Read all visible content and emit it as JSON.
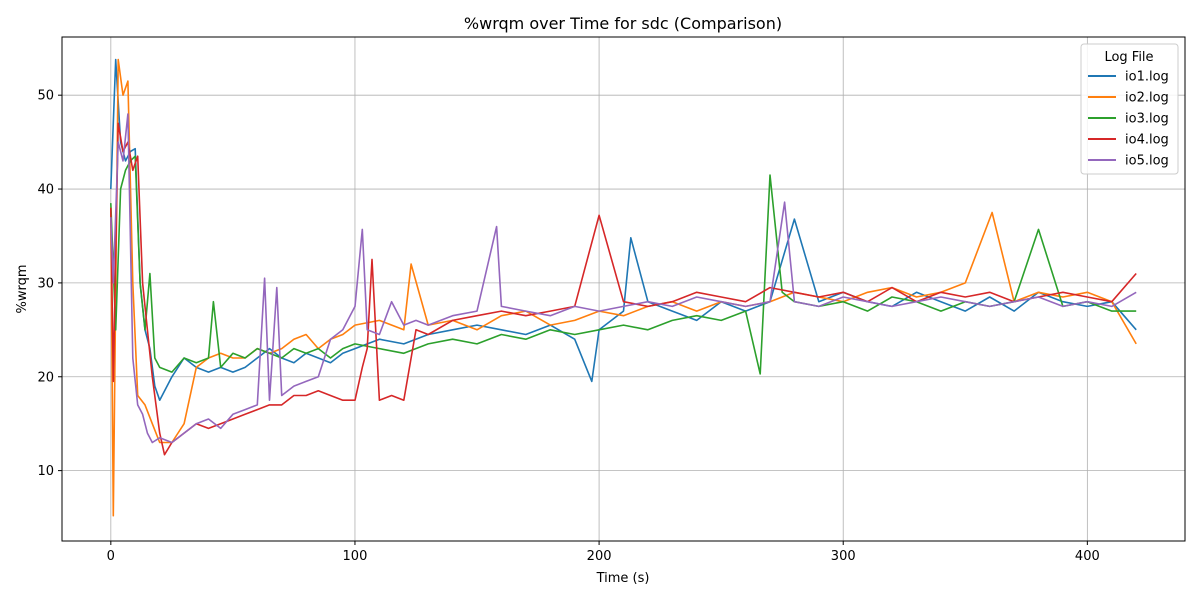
{
  "chart_data": {
    "type": "line",
    "title": "%wrqm over Time for sdc (Comparison)",
    "xlabel": "Time (s)",
    "ylabel": "%wrqm",
    "xlim": [
      -20,
      440
    ],
    "ylim": [
      2.5,
      56.2
    ],
    "xticks": [
      0,
      100,
      200,
      300,
      400
    ],
    "yticks": [
      10,
      20,
      30,
      40,
      50
    ],
    "grid": true,
    "legend": {
      "title": "Log File",
      "placement": "top-right"
    },
    "series": [
      {
        "name": "io1.log",
        "color": "#1f77b4",
        "x": [
          0,
          2,
          4,
          6,
          8,
          10,
          12,
          14,
          16,
          18,
          20,
          25,
          30,
          35,
          40,
          45,
          50,
          55,
          60,
          65,
          70,
          75,
          80,
          85,
          90,
          95,
          100,
          110,
          120,
          130,
          140,
          150,
          160,
          170,
          180,
          190,
          197,
          200,
          210,
          213,
          220,
          230,
          240,
          250,
          260,
          270,
          280,
          290,
          300,
          310,
          320,
          330,
          340,
          350,
          360,
          370,
          380,
          390,
          400,
          410,
          420
        ],
        "y": [
          40,
          53.8,
          45,
          43,
          44,
          44.3,
          30,
          25,
          23,
          19,
          17.5,
          20,
          22,
          21,
          20.5,
          21,
          20.5,
          21,
          22,
          23,
          22,
          21.5,
          22.5,
          22,
          21.5,
          22.5,
          23,
          24,
          23.5,
          24.5,
          25,
          25.5,
          25,
          24.5,
          25.5,
          24,
          19.5,
          25,
          27,
          34.8,
          28,
          27,
          26,
          28,
          27,
          28,
          36.8,
          28,
          29,
          28,
          27.5,
          29,
          28,
          27,
          28.5,
          27,
          29,
          28,
          27.5,
          28,
          25
        ]
      },
      {
        "name": "io2.log",
        "color": "#ff7f0e",
        "x": [
          0,
          1,
          3,
          5,
          7,
          9,
          11,
          14,
          17,
          20,
          25,
          30,
          35,
          40,
          45,
          50,
          55,
          60,
          65,
          70,
          75,
          80,
          85,
          90,
          95,
          100,
          110,
          120,
          123,
          130,
          140,
          150,
          160,
          170,
          180,
          190,
          200,
          210,
          220,
          230,
          240,
          250,
          260,
          270,
          280,
          290,
          300,
          310,
          320,
          330,
          340,
          350,
          361,
          370,
          380,
          390,
          400,
          410,
          420
        ],
        "y": [
          38,
          5.2,
          53.8,
          50,
          51.5,
          30,
          18,
          17,
          15,
          13,
          13,
          15,
          21,
          22,
          22.5,
          22,
          22,
          23,
          22.5,
          23,
          24,
          24.5,
          23,
          24,
          24.5,
          25.5,
          26,
          25,
          32,
          25.5,
          26,
          25,
          26.5,
          27,
          25.5,
          26,
          27,
          26.5,
          27.5,
          28,
          27,
          28,
          27.5,
          28,
          29,
          28.5,
          28,
          29,
          29.5,
          28.5,
          29,
          30,
          37.5,
          28,
          29,
          28.5,
          29,
          28,
          23.5
        ]
      },
      {
        "name": "io3.log",
        "color": "#2ca02c",
        "x": [
          0,
          2,
          4,
          6,
          8,
          10,
          12,
          14,
          16,
          18,
          20,
          25,
          30,
          35,
          40,
          42,
          45,
          50,
          55,
          60,
          65,
          70,
          75,
          80,
          85,
          90,
          95,
          100,
          110,
          120,
          130,
          140,
          150,
          160,
          170,
          180,
          190,
          200,
          210,
          220,
          230,
          240,
          250,
          260,
          266,
          270,
          275,
          280,
          290,
          300,
          310,
          320,
          330,
          340,
          350,
          360,
          370,
          380,
          390,
          400,
          410,
          420
        ],
        "y": [
          38.5,
          25,
          40,
          42,
          43,
          43.5,
          30,
          25,
          31,
          22,
          21,
          20.5,
          22,
          21.5,
          22,
          28,
          21,
          22.5,
          22,
          23,
          22.5,
          22,
          23,
          22.5,
          23,
          22,
          23,
          23.5,
          23,
          22.5,
          23.5,
          24,
          23.5,
          24.5,
          24,
          25,
          24.5,
          25,
          25.5,
          25,
          26,
          26.5,
          26,
          27,
          20.3,
          41.5,
          29,
          28,
          27.5,
          28,
          27,
          28.5,
          28,
          27,
          28,
          27.5,
          28,
          35.7,
          27.5,
          28,
          27,
          27
        ]
      },
      {
        "name": "io4.log",
        "color": "#d62728",
        "x": [
          0,
          1,
          3,
          5,
          7,
          9,
          11,
          13,
          15,
          17,
          20,
          22,
          25,
          30,
          35,
          40,
          45,
          50,
          55,
          60,
          65,
          70,
          75,
          80,
          85,
          90,
          95,
          100,
          103,
          105,
          107,
          110,
          115,
          120,
          125,
          130,
          140,
          150,
          160,
          170,
          180,
          190,
          200,
          210,
          220,
          230,
          240,
          250,
          260,
          270,
          280,
          290,
          300,
          310,
          320,
          330,
          340,
          350,
          360,
          370,
          380,
          390,
          400,
          410,
          420
        ],
        "y": [
          38,
          19.5,
          47,
          44,
          45,
          42,
          43.5,
          30,
          25,
          20,
          14,
          11.7,
          13,
          14,
          15,
          14.5,
          15,
          15.5,
          16,
          16.5,
          17,
          17,
          18,
          18,
          18.5,
          18,
          17.5,
          17.5,
          21,
          23,
          32.5,
          17.5,
          18,
          17.5,
          25,
          24.5,
          26,
          26.5,
          27,
          26.5,
          27,
          27.5,
          37.2,
          28,
          27.5,
          28,
          29,
          28.5,
          28,
          29.5,
          29,
          28.5,
          29,
          28,
          29.5,
          28,
          29,
          28.5,
          29,
          28,
          28.5,
          29,
          28.5,
          28,
          31
        ]
      },
      {
        "name": "io5.log",
        "color": "#9467bd",
        "x": [
          0,
          1,
          3,
          5,
          7,
          9,
          11,
          13,
          15,
          17,
          20,
          25,
          30,
          35,
          40,
          45,
          50,
          55,
          60,
          63,
          65,
          68,
          70,
          75,
          80,
          85,
          90,
          95,
          100,
          103,
          105,
          110,
          115,
          120,
          125,
          130,
          140,
          150,
          158,
          160,
          170,
          180,
          190,
          200,
          210,
          220,
          230,
          240,
          250,
          260,
          270,
          276,
          280,
          290,
          300,
          310,
          320,
          330,
          340,
          350,
          360,
          370,
          380,
          390,
          400,
          410,
          420
        ],
        "y": [
          37,
          30,
          45,
          43,
          48,
          22,
          17,
          16,
          14,
          13,
          13.5,
          13,
          14,
          15,
          15.5,
          14.5,
          16,
          16.5,
          17,
          30.5,
          17.5,
          29.5,
          18,
          19,
          19.5,
          20,
          24,
          25,
          27.5,
          35.7,
          25,
          24.5,
          28,
          25.5,
          26,
          25.5,
          26.5,
          27,
          36,
          27.5,
          27,
          26.5,
          27.5,
          27,
          27.5,
          28,
          27.5,
          28.5,
          28,
          27.5,
          28,
          38.6,
          28,
          27.5,
          28.5,
          28,
          27.5,
          28,
          28.5,
          28,
          27.5,
          28,
          28.5,
          27.5,
          28,
          27.5,
          29
        ]
      }
    ]
  }
}
